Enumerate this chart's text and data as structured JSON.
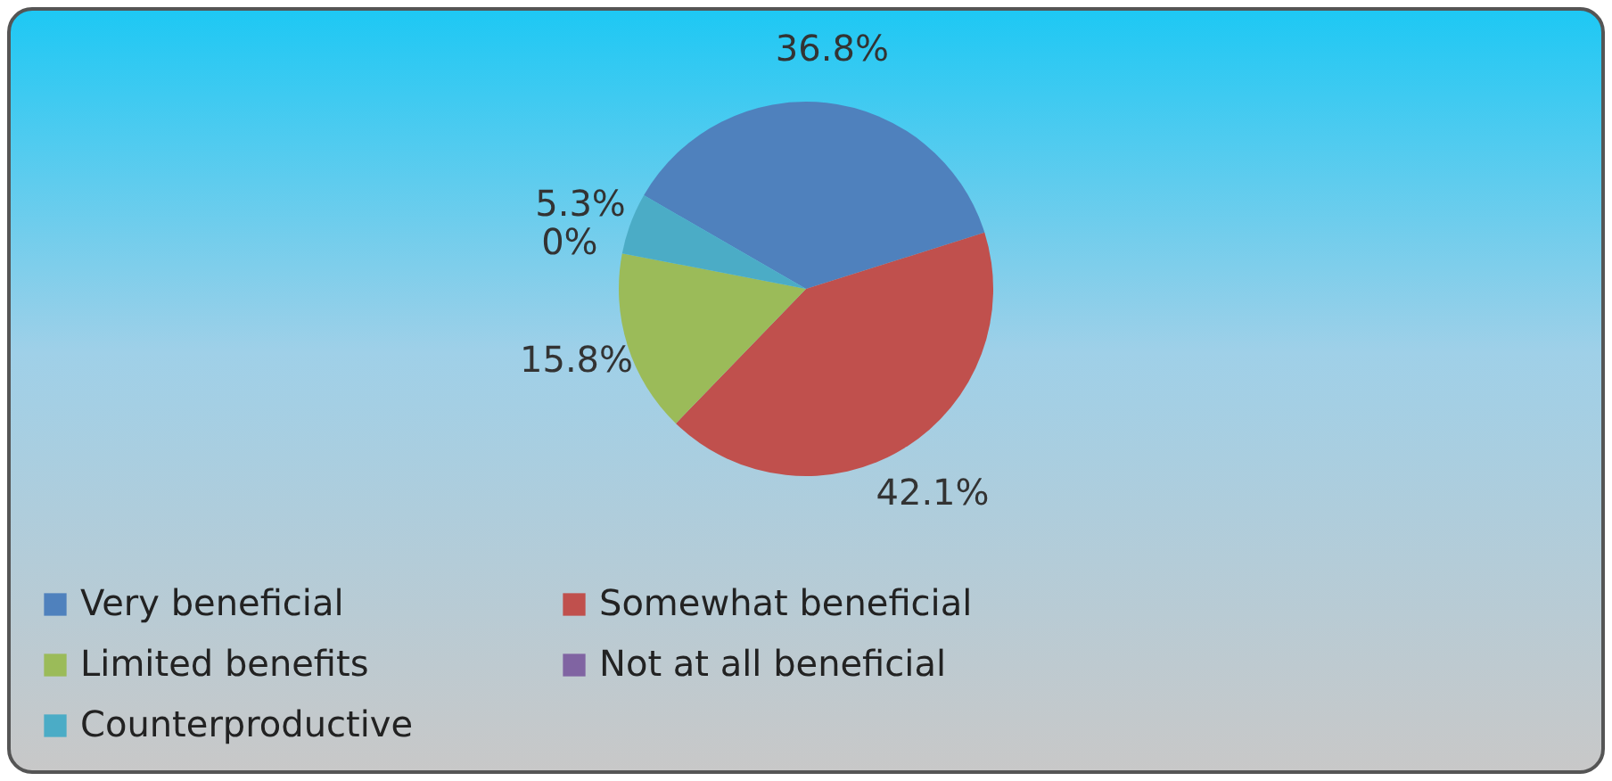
{
  "chart_data": {
    "type": "pie",
    "categories": [
      "Very beneficial",
      "Somewhat beneficial",
      "Limited benefits",
      "Not at all beneficial",
      "Counterproductive"
    ],
    "values": [
      36.8,
      42.1,
      15.8,
      0,
      5.3
    ],
    "colors": [
      "#4f81bd",
      "#c0504d",
      "#9bbb59",
      "#8064a2",
      "#4bacc6"
    ],
    "value_labels": [
      "36.8%",
      "42.1%",
      "15.8%",
      "0%",
      "5.3%"
    ],
    "legend": "bottom"
  }
}
